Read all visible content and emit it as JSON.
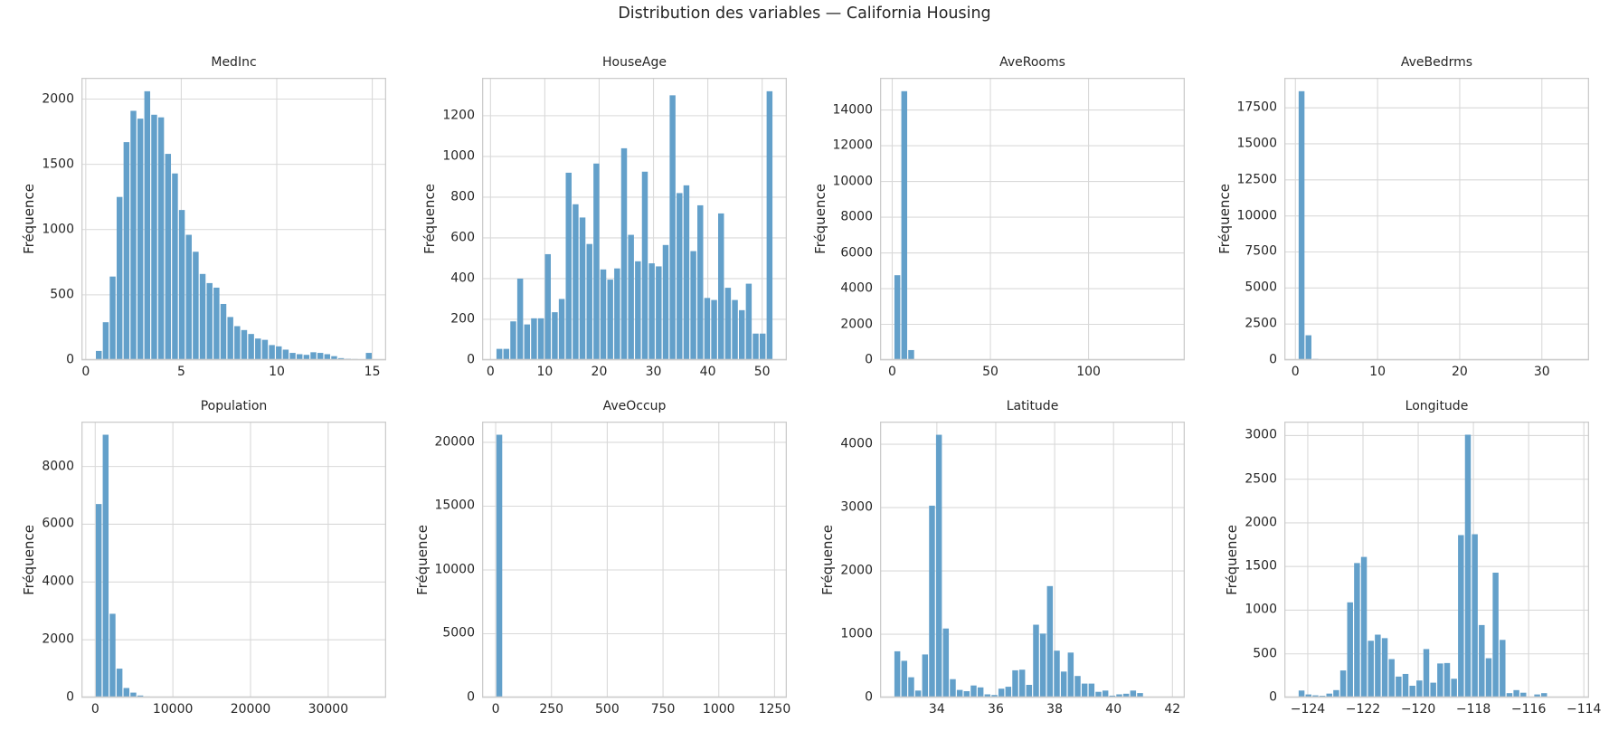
{
  "figure": {
    "suptitle": "Distribution des variables — California Housing",
    "ylabel": "Fréquence",
    "colors": {
      "bar": "#63a0ca",
      "grid": "#d9d9d9",
      "spine": "#cccccc",
      "text": "#262626",
      "background": "#ffffff"
    }
  },
  "chart_data": [
    {
      "type": "bar",
      "title": "MedInc",
      "ylabel": "Fréquence",
      "grid": true,
      "x_start": 0.5,
      "bin_width": 0.3625,
      "values": [
        70,
        290,
        640,
        1250,
        1670,
        1910,
        1850,
        2060,
        1880,
        1860,
        1580,
        1430,
        1150,
        960,
        830,
        660,
        590,
        555,
        430,
        330,
        260,
        230,
        200,
        165,
        155,
        115,
        105,
        80,
        55,
        45,
        40,
        60,
        55,
        45,
        30,
        15,
        10,
        8,
        5,
        55
      ],
      "xlim": [
        -0.23,
        15.73
      ],
      "ylim": [
        0,
        2163
      ],
      "xticks": [
        0,
        5,
        10,
        15
      ],
      "yticks": [
        0,
        500,
        1000,
        1500,
        2000
      ]
    },
    {
      "type": "bar",
      "title": "HouseAge",
      "ylabel": "Fréquence",
      "grid": true,
      "x_start": 1.0,
      "bin_width": 1.275,
      "values": [
        55,
        55,
        190,
        400,
        175,
        205,
        205,
        520,
        235,
        300,
        920,
        765,
        700,
        570,
        965,
        445,
        395,
        450,
        1040,
        615,
        485,
        925,
        475,
        460,
        565,
        1300,
        820,
        858,
        535,
        760,
        305,
        295,
        720,
        355,
        295,
        245,
        375,
        130,
        130,
        1320
      ],
      "xlim": [
        -1.55,
        54.55
      ],
      "ylim": [
        0,
        1386
      ],
      "xticks": [
        0,
        10,
        20,
        30,
        40,
        50
      ],
      "yticks": [
        0,
        200,
        400,
        600,
        800,
        1000,
        1200
      ]
    },
    {
      "type": "bar",
      "title": "AveRooms",
      "ylabel": "Fréquence",
      "grid": true,
      "x_start": 0.85,
      "bin_width": 3.527,
      "values": [
        4750,
        15050,
        560,
        0,
        0,
        0,
        0,
        0,
        0,
        0,
        0,
        0,
        0,
        0,
        0,
        0,
        0,
        0,
        0,
        0,
        0,
        0,
        0,
        0,
        0,
        0,
        0,
        0,
        0,
        0,
        0,
        0,
        0,
        0,
        0,
        0,
        0,
        0,
        0,
        0
      ],
      "xlim": [
        -6.2,
        149.0
      ],
      "ylim": [
        0,
        15800
      ],
      "xticks": [
        0,
        50,
        100
      ],
      "yticks": [
        0,
        2000,
        4000,
        6000,
        8000,
        10000,
        12000,
        14000
      ]
    },
    {
      "type": "bar",
      "title": "AveBedrms",
      "ylabel": "Fréquence",
      "grid": true,
      "x_start": 0.33,
      "bin_width": 0.843,
      "values": [
        18650,
        1720,
        80,
        0,
        0,
        0,
        0,
        0,
        0,
        0,
        0,
        0,
        0,
        0,
        0,
        0,
        0,
        0,
        0,
        0,
        0,
        0,
        0,
        0,
        0,
        0,
        0,
        0,
        0,
        0,
        0,
        0,
        0,
        0,
        0,
        0,
        0,
        0,
        0,
        0
      ],
      "xlim": [
        -1.35,
        35.75
      ],
      "ylim": [
        0,
        19580
      ],
      "xticks": [
        0,
        10,
        20,
        30
      ],
      "yticks": [
        0,
        2500,
        5000,
        7500,
        10000,
        12500,
        15000,
        17500
      ]
    },
    {
      "type": "bar",
      "title": "Population",
      "ylabel": "Fréquence",
      "grid": true,
      "x_start": 3,
      "bin_width": 892.5,
      "values": [
        6700,
        9100,
        2900,
        1000,
        330,
        170,
        70,
        35,
        20,
        10,
        5,
        3,
        2,
        0,
        0,
        0,
        0,
        0,
        0,
        0,
        0,
        0,
        0,
        0,
        0,
        0,
        0,
        0,
        0,
        0,
        0,
        0,
        0,
        0,
        0,
        0,
        0,
        0,
        0,
        0
      ],
      "xlim": [
        -1780,
        37470
      ],
      "ylim": [
        0,
        9555
      ],
      "xticks": [
        0,
        10000,
        20000,
        30000
      ],
      "yticks": [
        0,
        2000,
        4000,
        6000,
        8000
      ]
    },
    {
      "type": "bar",
      "title": "AveOccup",
      "ylabel": "Fréquence",
      "grid": true,
      "x_start": 0.7,
      "bin_width": 31.1,
      "values": [
        20600,
        30,
        5,
        2,
        0,
        0,
        0,
        0,
        0,
        0,
        0,
        0,
        0,
        0,
        0,
        0,
        0,
        0,
        0,
        0,
        0,
        0,
        0,
        0,
        0,
        0,
        0,
        0,
        0,
        0,
        0,
        0,
        0,
        0,
        0,
        0,
        0,
        0,
        0,
        0
      ],
      "xlim": [
        -61,
        1305
      ],
      "ylim": [
        0,
        21630
      ],
      "xticks": [
        0,
        250,
        500,
        750,
        1000,
        1250
      ],
      "yticks": [
        0,
        5000,
        10000,
        15000,
        20000
      ]
    },
    {
      "type": "bar",
      "title": "Latitude",
      "ylabel": "Fréquence",
      "grid": true,
      "x_start": 32.54,
      "bin_width": 0.2355,
      "values": [
        730,
        580,
        320,
        110,
        680,
        3030,
        4150,
        1090,
        290,
        120,
        100,
        190,
        160,
        50,
        40,
        140,
        170,
        430,
        440,
        200,
        1150,
        1010,
        1760,
        740,
        410,
        710,
        340,
        220,
        220,
        90,
        110,
        30,
        50,
        60,
        110,
        70,
        5,
        2,
        2,
        10
      ],
      "xlim": [
        32.07,
        42.42
      ],
      "ylim": [
        0,
        4358
      ],
      "xticks": [
        34,
        36,
        38,
        40,
        42
      ],
      "yticks": [
        0,
        1000,
        2000,
        3000,
        4000
      ]
    },
    {
      "type": "bar",
      "title": "Longitude",
      "ylabel": "Fréquence",
      "grid": true,
      "x_start": -124.35,
      "bin_width": 0.251,
      "values": [
        80,
        35,
        25,
        20,
        45,
        85,
        310,
        1090,
        1540,
        1610,
        650,
        720,
        680,
        440,
        240,
        270,
        135,
        195,
        555,
        170,
        390,
        395,
        215,
        1860,
        3010,
        1870,
        830,
        450,
        1430,
        660,
        50,
        85,
        55,
        5,
        35,
        50,
        3,
        2,
        8,
        2
      ],
      "xlim": [
        -124.85,
        -113.81
      ],
      "ylim": [
        0,
        3160
      ],
      "xticks": [
        -124,
        -122,
        -120,
        -118,
        -116,
        -114
      ],
      "yticks": [
        0,
        500,
        1000,
        1500,
        2000,
        2500,
        3000
      ]
    }
  ]
}
